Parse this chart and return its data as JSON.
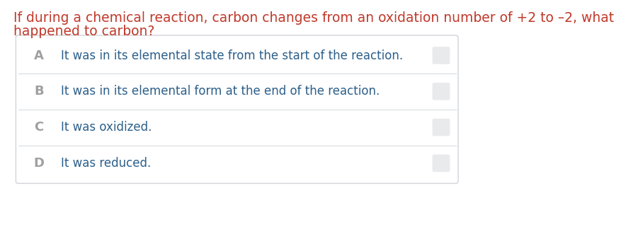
{
  "question_line1": "If during a chemical reaction, carbon changes from an oxidation number of +2 to –2, what",
  "question_line2": "happened to carbon?",
  "question_color": "#c0392b",
  "choices": [
    {
      "letter": "A",
      "text": "It was in its elemental state from the start of the reaction."
    },
    {
      "letter": "B",
      "text": "It was in its elemental form at the end of the reaction."
    },
    {
      "letter": "C",
      "text": "It was oxidized."
    },
    {
      "letter": "D",
      "text": "It was reduced."
    }
  ],
  "letter_color": "#a0a0a0",
  "text_color": "#2c5f8a",
  "background_color": "#ffffff",
  "box_background": "#ffffff",
  "outer_border_color": "#d0d3d8",
  "divider_color": "#d8dce0",
  "checkbox_color": "#e8eaec",
  "font_size_question": 13.5,
  "font_size_choices": 12,
  "font_size_letter": 13
}
